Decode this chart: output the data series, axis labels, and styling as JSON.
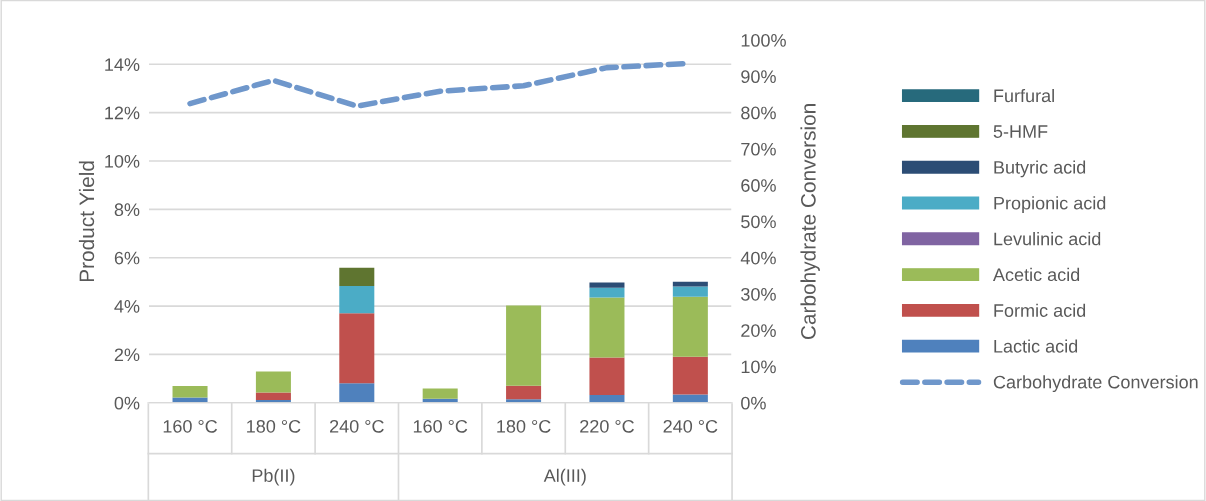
{
  "chart_data": {
    "type": "bar",
    "stacked": true,
    "categories": [
      "160 °C",
      "180 °C",
      "240 °C",
      "160 °C",
      "180 °C",
      "220 °C",
      "240 °C"
    ],
    "annotations": [
      "Pb(II)",
      "Al(III)"
    ],
    "ylabel": "Product Yield",
    "y2label": "Carbohydrate Conversion",
    "ylim": [
      0,
      15
    ],
    "yticks": [
      {
        "value": 0,
        "label": "0%"
      },
      {
        "value": 2,
        "label": "2%"
      },
      {
        "value": 4,
        "label": "4%"
      },
      {
        "value": 6,
        "label": "6%"
      },
      {
        "value": 8,
        "label": "8%"
      },
      {
        "value": 10,
        "label": "10%"
      },
      {
        "value": 12,
        "label": "12%"
      },
      {
        "value": 14,
        "label": "14%"
      }
    ],
    "y2lim": [
      0,
      100
    ],
    "y2ticks": [
      {
        "value": 0,
        "label": "0%"
      },
      {
        "value": 10,
        "label": "10%"
      },
      {
        "value": 20,
        "label": "20%"
      },
      {
        "value": 30,
        "label": "30%"
      },
      {
        "value": 40,
        "label": "40%"
      },
      {
        "value": 50,
        "label": "50%"
      },
      {
        "value": 60,
        "label": "60%"
      },
      {
        "value": 70,
        "label": "70%"
      },
      {
        "value": 80,
        "label": "80%"
      },
      {
        "value": 90,
        "label": "90%"
      },
      {
        "value": 100,
        "label": "100%"
      }
    ],
    "grid": "y",
    "legend": "right",
    "series": [
      {
        "name": "Lactic acid",
        "color": "#4f81bd",
        "values": [
          0.22,
          0.12,
          0.81,
          0.17,
          0.15,
          0.32,
          0.34
        ]
      },
      {
        "name": "Formic acid",
        "color": "#c0504d",
        "values": [
          0,
          0.31,
          2.89,
          0,
          0.56,
          1.55,
          1.56
        ]
      },
      {
        "name": "Acetic acid",
        "color": "#9bbb59",
        "values": [
          0.48,
          0.86,
          0,
          0.42,
          3.31,
          2.48,
          2.49
        ]
      },
      {
        "name": "Levulinic acid",
        "color": "#8064a2",
        "values": [
          0,
          0,
          0,
          0,
          0,
          0,
          0
        ]
      },
      {
        "name": "Propionic acid",
        "color": "#4bacc6",
        "values": [
          0,
          0,
          1.13,
          0,
          0,
          0.41,
          0.42
        ]
      },
      {
        "name": "Butyric acid",
        "color": "#2c4d75",
        "values": [
          0,
          0,
          0,
          0,
          0,
          0.21,
          0.2
        ]
      },
      {
        "name": "5-HMF",
        "color": "#5f7530",
        "values": [
          0,
          0,
          0.76,
          0,
          0,
          0,
          0
        ]
      },
      {
        "name": "Furfural",
        "color": "#276a7c",
        "values": [
          0,
          0,
          0,
          0,
          0,
          0,
          0
        ]
      },
      {
        "name": "Carbohydrate Conversion",
        "type": "line",
        "axis": "y2",
        "color": "#6f97cb",
        "line_style": "dashed",
        "marker": "none",
        "values": [
          82.5,
          88.9,
          81.8,
          85.9,
          87.4,
          92.4,
          93.6
        ]
      }
    ]
  }
}
